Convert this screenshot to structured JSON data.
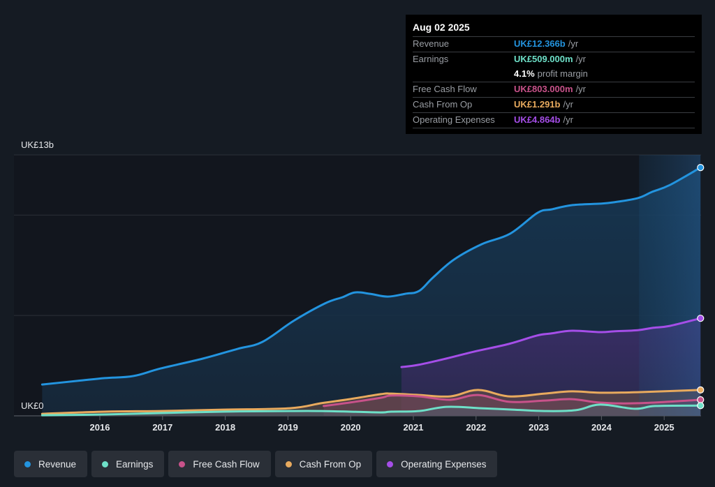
{
  "tooltip": {
    "date": "Aug 02 2025",
    "rows": [
      {
        "label": "Revenue",
        "value": "UK£12.366b",
        "unit": "/yr",
        "color": "#2394df"
      },
      {
        "label": "Earnings",
        "value": "UK£509.000m",
        "unit": "/yr",
        "color": "#6ee0c8"
      },
      {
        "label": "",
        "value": "4.1%",
        "unit": "profit margin",
        "color": "#ffffff"
      },
      {
        "label": "Free Cash Flow",
        "value": "UK£803.000m",
        "unit": "/yr",
        "color": "#c8528a"
      },
      {
        "label": "Cash From Op",
        "value": "UK£1.291b",
        "unit": "/yr",
        "color": "#e8aa5e"
      },
      {
        "label": "Operating Expenses",
        "value": "UK£4.864b",
        "unit": "/yr",
        "color": "#a54ee8"
      }
    ]
  },
  "legend": [
    {
      "label": "Revenue",
      "color": "#2394df"
    },
    {
      "label": "Earnings",
      "color": "#6ee0c8"
    },
    {
      "label": "Free Cash Flow",
      "color": "#c8528a"
    },
    {
      "label": "Cash From Op",
      "color": "#e8aa5e"
    },
    {
      "label": "Operating Expenses",
      "color": "#a54ee8"
    }
  ],
  "chart_data": {
    "type": "area",
    "title": "",
    "xlabel": "",
    "ylabel": "",
    "y_unit": "UK£ billions",
    "ylim": [
      0,
      13
    ],
    "xlim": [
      2015.08,
      2025.58
    ],
    "y_tick_labels": [
      {
        "value": 13,
        "label": "UK£13b"
      },
      {
        "value": 0,
        "label": "UK£0"
      }
    ],
    "y_gridlines": [
      0,
      5,
      10,
      13
    ],
    "x_ticks": [
      2016,
      2017,
      2018,
      2019,
      2020,
      2021,
      2022,
      2023,
      2024,
      2025
    ],
    "x_tick_labels": [
      "2016",
      "2017",
      "2018",
      "2019",
      "2020",
      "2021",
      "2022",
      "2023",
      "2024",
      "2025"
    ],
    "highlight_from": 2024.6,
    "grid": true,
    "legend_position": "bottom-left",
    "series": [
      {
        "name": "Revenue",
        "color": "#2394df",
        "fill": true,
        "points": [
          [
            2015.08,
            1.56
          ],
          [
            2015.64,
            1.74
          ],
          [
            2016.08,
            1.88
          ],
          [
            2016.53,
            1.98
          ],
          [
            2016.97,
            2.36
          ],
          [
            2017.64,
            2.85
          ],
          [
            2018.2,
            3.34
          ],
          [
            2018.59,
            3.68
          ],
          [
            2019.09,
            4.73
          ],
          [
            2019.59,
            5.6
          ],
          [
            2019.87,
            5.91
          ],
          [
            2020.07,
            6.15
          ],
          [
            2020.31,
            6.08
          ],
          [
            2020.59,
            5.94
          ],
          [
            2020.87,
            6.08
          ],
          [
            2021.09,
            6.22
          ],
          [
            2021.31,
            6.88
          ],
          [
            2021.65,
            7.79
          ],
          [
            2022.09,
            8.55
          ],
          [
            2022.54,
            9.07
          ],
          [
            2022.98,
            10.11
          ],
          [
            2023.21,
            10.29
          ],
          [
            2023.54,
            10.5
          ],
          [
            2023.98,
            10.57
          ],
          [
            2024.2,
            10.64
          ],
          [
            2024.58,
            10.85
          ],
          [
            2024.81,
            11.16
          ],
          [
            2025.09,
            11.5
          ],
          [
            2025.58,
            12.37
          ]
        ]
      },
      {
        "name": "Operating Expenses",
        "color": "#a54ee8",
        "fill": true,
        "points": [
          [
            2020.81,
            2.43
          ],
          [
            2021.08,
            2.54
          ],
          [
            2021.52,
            2.85
          ],
          [
            2021.97,
            3.2
          ],
          [
            2022.52,
            3.58
          ],
          [
            2022.97,
            4.0
          ],
          [
            2023.19,
            4.1
          ],
          [
            2023.53,
            4.24
          ],
          [
            2023.98,
            4.17
          ],
          [
            2024.2,
            4.21
          ],
          [
            2024.58,
            4.27
          ],
          [
            2024.81,
            4.38
          ],
          [
            2025.09,
            4.48
          ],
          [
            2025.58,
            4.86
          ]
        ]
      },
      {
        "name": "Cash From Op",
        "color": "#e8aa5e",
        "fill": true,
        "points": [
          [
            2015.08,
            0.1
          ],
          [
            2016.08,
            0.21
          ],
          [
            2016.97,
            0.24
          ],
          [
            2017.97,
            0.31
          ],
          [
            2019.03,
            0.38
          ],
          [
            2019.53,
            0.63
          ],
          [
            2019.98,
            0.83
          ],
          [
            2020.48,
            1.08
          ],
          [
            2020.65,
            1.11
          ],
          [
            2021.09,
            1.04
          ],
          [
            2021.59,
            0.97
          ],
          [
            2022.03,
            1.29
          ],
          [
            2022.53,
            0.97
          ],
          [
            2023.09,
            1.11
          ],
          [
            2023.53,
            1.22
          ],
          [
            2023.98,
            1.15
          ],
          [
            2024.58,
            1.18
          ],
          [
            2025.58,
            1.29
          ]
        ]
      },
      {
        "name": "Free Cash Flow",
        "color": "#c8528a",
        "fill": true,
        "points": [
          [
            2019.57,
            0.49
          ],
          [
            2019.98,
            0.66
          ],
          [
            2020.48,
            0.9
          ],
          [
            2020.65,
            1.01
          ],
          [
            2021.09,
            0.97
          ],
          [
            2021.59,
            0.8
          ],
          [
            2022.03,
            1.04
          ],
          [
            2022.53,
            0.7
          ],
          [
            2023.09,
            0.76
          ],
          [
            2023.53,
            0.83
          ],
          [
            2023.98,
            0.66
          ],
          [
            2024.58,
            0.63
          ],
          [
            2025.58,
            0.8
          ]
        ]
      },
      {
        "name": "Earnings",
        "color": "#6ee0c8",
        "fill": true,
        "points": [
          [
            2015.08,
            0.03
          ],
          [
            2016.08,
            0.07
          ],
          [
            2016.97,
            0.14
          ],
          [
            2017.97,
            0.21
          ],
          [
            2019.03,
            0.24
          ],
          [
            2019.53,
            0.24
          ],
          [
            2019.98,
            0.21
          ],
          [
            2020.48,
            0.17
          ],
          [
            2020.65,
            0.21
          ],
          [
            2021.09,
            0.24
          ],
          [
            2021.53,
            0.45
          ],
          [
            2022.08,
            0.38
          ],
          [
            2022.58,
            0.31
          ],
          [
            2023.09,
            0.24
          ],
          [
            2023.59,
            0.28
          ],
          [
            2023.98,
            0.56
          ],
          [
            2024.53,
            0.35
          ],
          [
            2024.86,
            0.49
          ],
          [
            2025.58,
            0.51
          ]
        ]
      }
    ]
  }
}
